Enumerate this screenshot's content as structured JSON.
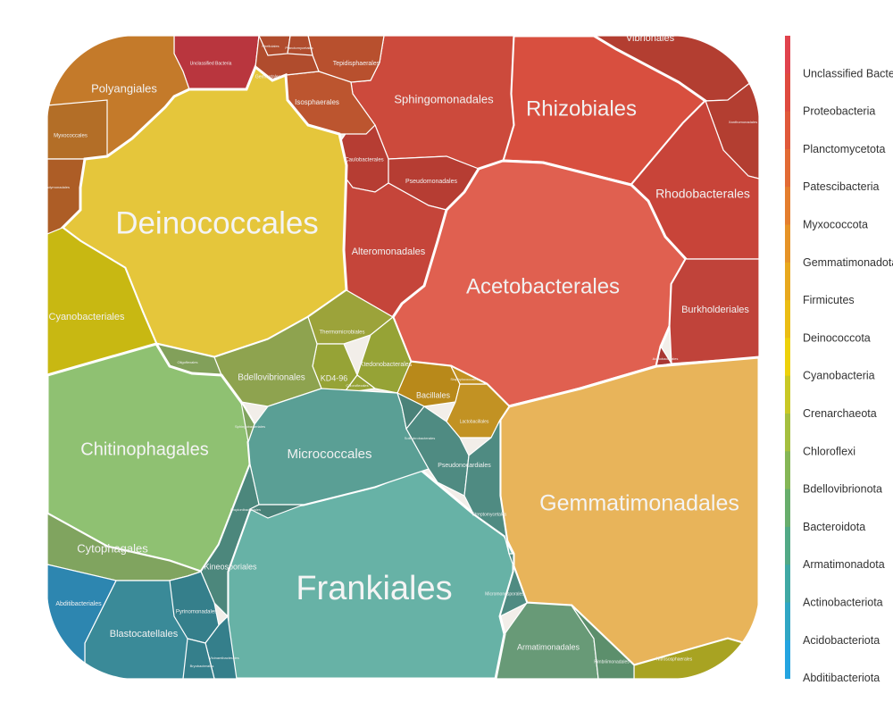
{
  "chart_data": {
    "type": "voronoi-treemap",
    "title": "",
    "legend_position": "right",
    "legend": [
      {
        "label": "Unclassified Bacteria",
        "color": "#e0434d"
      },
      {
        "label": "Proteobacteria",
        "color": "#df4a3f"
      },
      {
        "label": "Planctomycetota",
        "color": "#e0593a"
      },
      {
        "label": "Patescibacteria",
        "color": "#e26b35"
      },
      {
        "label": "Myxococcota",
        "color": "#e47e2e"
      },
      {
        "label": "Gemmatimonadota",
        "color": "#e69327"
      },
      {
        "label": "Firmicutes",
        "color": "#e8a81e"
      },
      {
        "label": "Deinococcota",
        "color": "#ebbd14"
      },
      {
        "label": "Cyanobacteria",
        "color": "#edd10b"
      },
      {
        "label": "Crenarchaeota",
        "color": "#c9c825"
      },
      {
        "label": "Chloroflexi",
        "color": "#a5bf3f"
      },
      {
        "label": "Bdellovibrionota",
        "color": "#85b656"
      },
      {
        "label": "Bacteroidota",
        "color": "#68ad6c"
      },
      {
        "label": "Armatimonadota",
        "color": "#52a986"
      },
      {
        "label": "Actinobacteriota",
        "color": "#40a8a4"
      },
      {
        "label": "Acidobacteriota",
        "color": "#30a6c4"
      },
      {
        "label": "Abditibacteriota",
        "color": "#24a4e0"
      }
    ],
    "cells": [
      {
        "label": "Unclassified Bacteria",
        "phylum": "Unclassified Bacteria",
        "color": "#b9363e"
      },
      {
        "label": "Vibrionales",
        "phylum": "Proteobacteria",
        "color": "#b33e31"
      },
      {
        "label": "Xanthomonadales",
        "phylum": "Proteobacteria",
        "color": "#b33e31"
      },
      {
        "label": "Rhizobiales",
        "phylum": "Proteobacteria",
        "color": "#d84f3f"
      },
      {
        "label": "Sphingomonadales",
        "phylum": "Proteobacteria",
        "color": "#cc4a3c"
      },
      {
        "label": "Rhodobacterales",
        "phylum": "Proteobacteria",
        "color": "#c84439"
      },
      {
        "label": "Caulobacterales",
        "phylum": "Proteobacteria",
        "color": "#b63d33"
      },
      {
        "label": "Pseudomonadales",
        "phylum": "Proteobacteria",
        "color": "#b63d33"
      },
      {
        "label": "Alteromonadales",
        "phylum": "Proteobacteria",
        "color": "#c5453a"
      },
      {
        "label": "Acetobacterales",
        "phylum": "Proteobacteria",
        "color": "#e06050"
      },
      {
        "label": "Burkholderiales",
        "phylum": "Proteobacteria",
        "color": "#c0433a"
      },
      {
        "label": "Acetobacterales",
        "phylum": "Proteobacteria",
        "color": "#a83632"
      },
      {
        "label": "Tepidisphaerales",
        "phylum": "Planctomycetota",
        "color": "#b8502e"
      },
      {
        "label": "Isosphaerales",
        "phylum": "Planctomycetota",
        "color": "#bc552f"
      },
      {
        "label": "Gemmatales",
        "phylum": "Planctomycetota",
        "color": "#b04c2d"
      },
      {
        "label": "Pirellulales",
        "phylum": "Planctomycetota",
        "color": "#b04c2d"
      },
      {
        "label": "Planctomycetales",
        "phylum": "Planctomycetota",
        "color": "#b04c2d"
      },
      {
        "label": "Polyangiales",
        "phylum": "Myxococcota",
        "color": "#c47a2a"
      },
      {
        "label": "Myxococcales",
        "phylum": "Myxococcota",
        "color": "#b36e27"
      },
      {
        "label": "Bradymonadales",
        "phylum": "Myxococcota",
        "color": "#ad5d26"
      },
      {
        "label": "Gemmatimonadales",
        "phylum": "Gemmatimonadota",
        "color": "#e8b45a"
      },
      {
        "label": "Bacillales",
        "phylum": "Firmicutes",
        "color": "#b8891a"
      },
      {
        "label": "Lactobacillales",
        "phylum": "Firmicutes",
        "color": "#c29223"
      },
      {
        "label": "Staphylococcales",
        "phylum": "Firmicutes",
        "color": "#c29223"
      },
      {
        "label": "Deinococcales",
        "phylum": "Deinococcota",
        "color": "#e5c63b"
      },
      {
        "label": "Cyanobacteriales",
        "phylum": "Cyanobacteria",
        "color": "#c8b812"
      },
      {
        "label": "Nitrososphaerales",
        "phylum": "Crenarchaeota",
        "color": "#a8a322"
      },
      {
        "label": "Thermomicrobiales",
        "phylum": "Chloroflexi",
        "color": "#9ca33a"
      },
      {
        "label": "Ktedonobacterales",
        "phylum": "Chloroflexi",
        "color": "#96a336"
      },
      {
        "label": "KD4-96",
        "phylum": "Chloroflexi",
        "color": "#96a336"
      },
      {
        "label": "Chloroflexales",
        "phylum": "Chloroflexi",
        "color": "#96a336"
      },
      {
        "label": "Bdellovibrionales",
        "phylum": "Bdellovibrionota",
        "color": "#8ea34f"
      },
      {
        "label": "Oligoflexales",
        "phylum": "Bdellovibrionota",
        "color": "#82a05a"
      },
      {
        "label": "Chitinophagales",
        "phylum": "Bacteroidota",
        "color": "#8fc172"
      },
      {
        "label": "Cytophagales",
        "phylum": "Bacteroidota",
        "color": "#80a45f"
      },
      {
        "label": "Sphingobacteriales",
        "phylum": "Bacteroidota",
        "color": "#80a45f"
      },
      {
        "label": "Armatimonadales",
        "phylum": "Armatimonadota",
        "color": "#689a77"
      },
      {
        "label": "Fimbriimonadales",
        "phylum": "Armatimonadota",
        "color": "#5c8f6c"
      },
      {
        "label": "Frankiales",
        "phylum": "Actinobacteriota",
        "color": "#67b2a6"
      },
      {
        "label": "Micrococcales",
        "phylum": "Actinobacteriota",
        "color": "#5a9f95"
      },
      {
        "label": "Pseudonocardiales",
        "phylum": "Actinobacteriota",
        "color": "#4f8b82"
      },
      {
        "label": "Solirubrobacterales",
        "phylum": "Actinobacteriota",
        "color": "#4a8279"
      },
      {
        "label": "Streptomycetales",
        "phylum": "Actinobacteriota",
        "color": "#4f8b82"
      },
      {
        "label": "Kineosporiales",
        "phylum": "Actinobacteriota",
        "color": "#4c877c"
      },
      {
        "label": "Propionibacteriales",
        "phylum": "Actinobacteriota",
        "color": "#4a8279"
      },
      {
        "label": "Micromonosporales",
        "phylum": "Actinobacteriota",
        "color": "#4f8b82"
      },
      {
        "label": "Blastocatellales",
        "phylum": "Acidobacteriota",
        "color": "#3a8a98"
      },
      {
        "label": "Pyrinomonadales",
        "phylum": "Acidobacteriota",
        "color": "#357f8b"
      },
      {
        "label": "Vicinamibacterales",
        "phylum": "Acidobacteriota",
        "color": "#357f8b"
      },
      {
        "label": "Bryobacterales",
        "phylum": "Acidobacteriota",
        "color": "#357f8b"
      },
      {
        "label": "Abditibacteriales",
        "phylum": "Abditibacteriota",
        "color": "#2d86b0"
      }
    ]
  }
}
